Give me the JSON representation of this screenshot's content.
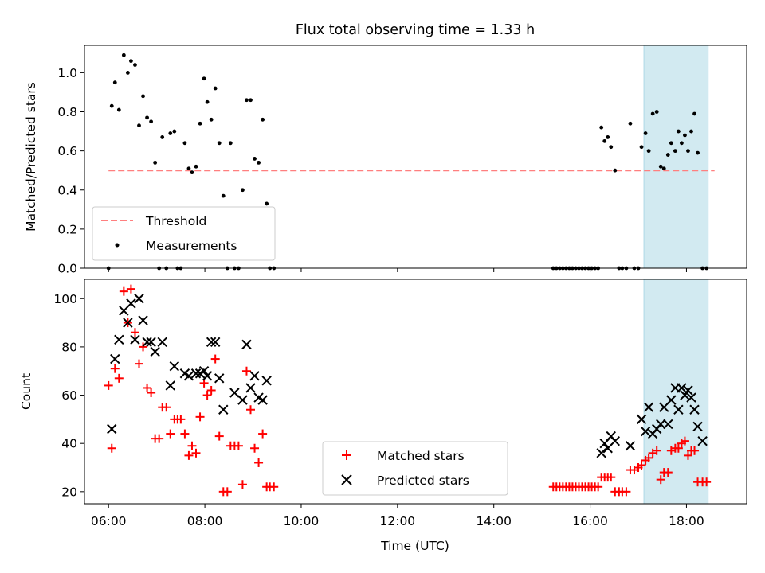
{
  "chart_data": [
    {
      "type": "scatter",
      "title": "Flux total observing time = 1.33 h",
      "xlabel": "",
      "ylabel": "Matched/Predicted stars",
      "xlim": [
        "05:30",
        "19:15"
      ],
      "ylim": [
        0,
        1.14
      ],
      "yticks": [
        0.0,
        0.2,
        0.4,
        0.6,
        0.8,
        1.0
      ],
      "ytick_labels": [
        "0.0",
        "0.2",
        "0.4",
        "0.6",
        "0.8",
        "1.0"
      ],
      "grid": false,
      "legend_position": "lower-left",
      "highlight_span": {
        "start": "17:07",
        "end": "18:27",
        "color": "#add8e6"
      },
      "threshold": {
        "name": "Threshold",
        "value": 0.5,
        "start": "06:00",
        "end": "18:35",
        "color": "#ff7f7f",
        "style": "dashed"
      },
      "series": [
        {
          "name": "Measurements",
          "color": "#000000",
          "marker": "dot",
          "points": [
            [
              "06:00",
              0.0
            ],
            [
              "06:04",
              0.83
            ],
            [
              "06:08",
              0.95
            ],
            [
              "06:13",
              0.81
            ],
            [
              "06:19",
              1.09
            ],
            [
              "06:24",
              1.0
            ],
            [
              "06:28",
              1.06
            ],
            [
              "06:33",
              1.04
            ],
            [
              "06:38",
              0.73
            ],
            [
              "06:43",
              0.88
            ],
            [
              "06:48",
              0.77
            ],
            [
              "06:53",
              0.75
            ],
            [
              "06:58",
              0.54
            ],
            [
              "07:03",
              0.0
            ],
            [
              "07:07",
              0.67
            ],
            [
              "07:12",
              0.0
            ],
            [
              "07:17",
              0.69
            ],
            [
              "07:22",
              0.7
            ],
            [
              "07:26",
              0.0
            ],
            [
              "07:30",
              0.0
            ],
            [
              "07:35",
              0.64
            ],
            [
              "07:40",
              0.51
            ],
            [
              "07:44",
              0.49
            ],
            [
              "07:49",
              0.52
            ],
            [
              "07:54",
              0.74
            ],
            [
              "07:59",
              0.97
            ],
            [
              "08:03",
              0.85
            ],
            [
              "08:08",
              0.76
            ],
            [
              "08:13",
              0.92
            ],
            [
              "08:18",
              0.64
            ],
            [
              "08:23",
              0.37
            ],
            [
              "08:28",
              0.0
            ],
            [
              "08:32",
              0.64
            ],
            [
              "08:37",
              0.0
            ],
            [
              "08:42",
              0.0
            ],
            [
              "08:47",
              0.4
            ],
            [
              "08:52",
              0.86
            ],
            [
              "08:57",
              0.86
            ],
            [
              "09:02",
              0.56
            ],
            [
              "09:07",
              0.54
            ],
            [
              "09:12",
              0.76
            ],
            [
              "09:17",
              0.33
            ],
            [
              "09:21",
              0.0
            ],
            [
              "09:26",
              0.0
            ],
            [
              "15:14",
              0.0
            ],
            [
              "15:18",
              0.0
            ],
            [
              "15:22",
              0.0
            ],
            [
              "15:26",
              0.0
            ],
            [
              "15:30",
              0.0
            ],
            [
              "15:34",
              0.0
            ],
            [
              "15:38",
              0.0
            ],
            [
              "15:42",
              0.0
            ],
            [
              "15:46",
              0.0
            ],
            [
              "15:50",
              0.0
            ],
            [
              "15:54",
              0.0
            ],
            [
              "15:58",
              0.0
            ],
            [
              "16:02",
              0.0
            ],
            [
              "16:06",
              0.0
            ],
            [
              "16:10",
              0.0
            ],
            [
              "16:14",
              0.72
            ],
            [
              "16:18",
              0.65
            ],
            [
              "16:22",
              0.67
            ],
            [
              "16:26",
              0.62
            ],
            [
              "16:31",
              0.5
            ],
            [
              "16:36",
              0.0
            ],
            [
              "16:40",
              0.0
            ],
            [
              "16:45",
              0.0
            ],
            [
              "16:50",
              0.74
            ],
            [
              "16:55",
              0.0
            ],
            [
              "17:00",
              0.0
            ],
            [
              "17:04",
              0.62
            ],
            [
              "17:09",
              0.69
            ],
            [
              "17:13",
              0.6
            ],
            [
              "17:18",
              0.79
            ],
            [
              "17:23",
              0.8
            ],
            [
              "17:28",
              0.52
            ],
            [
              "17:32",
              0.51
            ],
            [
              "17:37",
              0.58
            ],
            [
              "17:41",
              0.64
            ],
            [
              "17:46",
              0.6
            ],
            [
              "17:50",
              0.7
            ],
            [
              "17:54",
              0.64
            ],
            [
              "17:58",
              0.68
            ],
            [
              "18:02",
              0.6
            ],
            [
              "18:06",
              0.7
            ],
            [
              "18:10",
              0.79
            ],
            [
              "18:14",
              0.59
            ],
            [
              "18:20",
              0.0
            ],
            [
              "18:25",
              0.0
            ]
          ]
        }
      ]
    },
    {
      "type": "scatter",
      "title": "",
      "xlabel": "Time (UTC)",
      "ylabel": "Count",
      "xlim": [
        "05:30",
        "19:15"
      ],
      "ylim": [
        15,
        108
      ],
      "yticks": [
        20,
        40,
        60,
        80,
        100
      ],
      "ytick_labels": [
        "20",
        "40",
        "60",
        "80",
        "100"
      ],
      "xticks": [
        "06:00",
        "08:00",
        "10:00",
        "12:00",
        "14:00",
        "16:00",
        "18:00"
      ],
      "grid": false,
      "legend_position": "lower-center",
      "highlight_span": {
        "start": "17:07",
        "end": "18:27",
        "color": "#add8e6"
      },
      "series": [
        {
          "name": "Matched stars",
          "color": "#ff0000",
          "marker": "plus",
          "points": [
            [
              "06:00",
              64
            ],
            [
              "06:04",
              38
            ],
            [
              "06:08",
              71
            ],
            [
              "06:13",
              67
            ],
            [
              "06:19",
              103
            ],
            [
              "06:24",
              90
            ],
            [
              "06:28",
              104
            ],
            [
              "06:33",
              86
            ],
            [
              "06:38",
              73
            ],
            [
              "06:43",
              80
            ],
            [
              "06:48",
              63
            ],
            [
              "06:53",
              61
            ],
            [
              "06:58",
              42
            ],
            [
              "07:03",
              42
            ],
            [
              "07:07",
              55
            ],
            [
              "07:12",
              55
            ],
            [
              "07:17",
              44
            ],
            [
              "07:22",
              50
            ],
            [
              "07:26",
              50
            ],
            [
              "07:30",
              50
            ],
            [
              "07:35",
              44
            ],
            [
              "07:40",
              35
            ],
            [
              "07:44",
              39
            ],
            [
              "07:49",
              36
            ],
            [
              "07:54",
              51
            ],
            [
              "07:59",
              65
            ],
            [
              "08:03",
              60
            ],
            [
              "08:08",
              62
            ],
            [
              "08:13",
              75
            ],
            [
              "08:18",
              43
            ],
            [
              "08:23",
              20
            ],
            [
              "08:28",
              20
            ],
            [
              "08:32",
              39
            ],
            [
              "08:37",
              39
            ],
            [
              "08:42",
              39
            ],
            [
              "08:47",
              23
            ],
            [
              "08:52",
              70
            ],
            [
              "08:57",
              54
            ],
            [
              "09:02",
              38
            ],
            [
              "09:07",
              32
            ],
            [
              "09:12",
              44
            ],
            [
              "09:17",
              22
            ],
            [
              "09:21",
              22
            ],
            [
              "09:26",
              22
            ],
            [
              "15:14",
              22
            ],
            [
              "15:18",
              22
            ],
            [
              "15:22",
              22
            ],
            [
              "15:26",
              22
            ],
            [
              "15:30",
              22
            ],
            [
              "15:34",
              22
            ],
            [
              "15:38",
              22
            ],
            [
              "15:42",
              22
            ],
            [
              "15:46",
              22
            ],
            [
              "15:50",
              22
            ],
            [
              "15:54",
              22
            ],
            [
              "15:58",
              22
            ],
            [
              "16:02",
              22
            ],
            [
              "16:06",
              22
            ],
            [
              "16:10",
              22
            ],
            [
              "16:14",
              26
            ],
            [
              "16:18",
              26
            ],
            [
              "16:22",
              26
            ],
            [
              "16:26",
              26
            ],
            [
              "16:31",
              20
            ],
            [
              "16:36",
              20
            ],
            [
              "16:40",
              20
            ],
            [
              "16:45",
              20
            ],
            [
              "16:50",
              29
            ],
            [
              "16:55",
              29
            ],
            [
              "17:00",
              30
            ],
            [
              "17:04",
              31
            ],
            [
              "17:09",
              33
            ],
            [
              "17:13",
              34
            ],
            [
              "17:18",
              36
            ],
            [
              "17:23",
              37
            ],
            [
              "17:28",
              25
            ],
            [
              "17:32",
              28
            ],
            [
              "17:37",
              28
            ],
            [
              "17:41",
              37
            ],
            [
              "17:46",
              38
            ],
            [
              "17:50",
              38
            ],
            [
              "17:54",
              40
            ],
            [
              "17:58",
              41
            ],
            [
              "18:02",
              35
            ],
            [
              "18:06",
              37
            ],
            [
              "18:10",
              37
            ],
            [
              "18:14",
              24
            ],
            [
              "18:20",
              24
            ],
            [
              "18:25",
              24
            ]
          ]
        },
        {
          "name": "Predicted stars",
          "color": "#000000",
          "marker": "x",
          "points": [
            [
              "06:04",
              46
            ],
            [
              "06:08",
              75
            ],
            [
              "06:13",
              83
            ],
            [
              "06:19",
              95
            ],
            [
              "06:24",
              90
            ],
            [
              "06:28",
              98
            ],
            [
              "06:33",
              83
            ],
            [
              "06:38",
              100
            ],
            [
              "06:43",
              91
            ],
            [
              "06:48",
              82
            ],
            [
              "06:53",
              82
            ],
            [
              "06:58",
              78
            ],
            [
              "07:07",
              82
            ],
            [
              "07:17",
              64
            ],
            [
              "07:22",
              72
            ],
            [
              "07:35",
              69
            ],
            [
              "07:40",
              68
            ],
            [
              "07:49",
              69
            ],
            [
              "07:54",
              69
            ],
            [
              "07:59",
              70
            ],
            [
              "08:03",
              68
            ],
            [
              "08:08",
              82
            ],
            [
              "08:13",
              82
            ],
            [
              "08:18",
              67
            ],
            [
              "08:23",
              54
            ],
            [
              "08:37",
              61
            ],
            [
              "08:47",
              58
            ],
            [
              "08:52",
              81
            ],
            [
              "08:57",
              63
            ],
            [
              "09:02",
              68
            ],
            [
              "09:07",
              59
            ],
            [
              "09:12",
              58
            ],
            [
              "09:17",
              66
            ],
            [
              "16:14",
              36
            ],
            [
              "16:18",
              40
            ],
            [
              "16:22",
              38
            ],
            [
              "16:26",
              43
            ],
            [
              "16:31",
              41
            ],
            [
              "16:50",
              39
            ],
            [
              "17:04",
              50
            ],
            [
              "17:09",
              45
            ],
            [
              "17:13",
              55
            ],
            [
              "17:18",
              44
            ],
            [
              "17:23",
              46
            ],
            [
              "17:28",
              48
            ],
            [
              "17:32",
              55
            ],
            [
              "17:37",
              48
            ],
            [
              "17:41",
              58
            ],
            [
              "17:46",
              63
            ],
            [
              "17:50",
              54
            ],
            [
              "17:54",
              63
            ],
            [
              "17:58",
              60
            ],
            [
              "18:02",
              62
            ],
            [
              "18:06",
              59
            ],
            [
              "18:10",
              54
            ],
            [
              "18:14",
              47
            ],
            [
              "18:20",
              41
            ]
          ]
        }
      ]
    }
  ]
}
